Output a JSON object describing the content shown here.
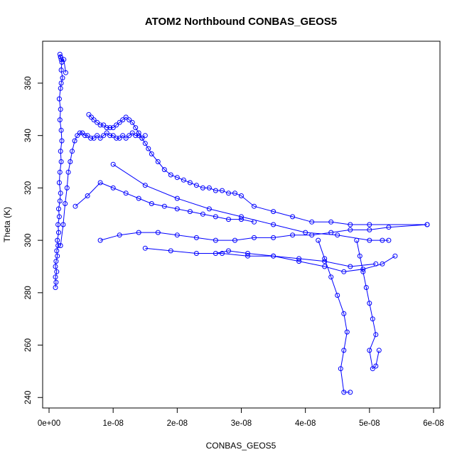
{
  "chart_data": {
    "type": "line",
    "title": "ATOM2 Northbound CONBAS_GEOS5",
    "xlabel": "CONBAS_GEOS5",
    "ylabel": "Theta (K)",
    "xlim": [
      -1e-09,
      6.1e-08
    ],
    "ylim": [
      236,
      376
    ],
    "x_ticks": [
      0,
      1e-08,
      2e-08,
      3e-08,
      4e-08,
      5e-08,
      6e-08
    ],
    "x_tick_labels": [
      "0e+00",
      "1e-08",
      "2e-08",
      "3e-08",
      "4e-08",
      "5e-08",
      "6e-08"
    ],
    "y_ticks": [
      240,
      260,
      280,
      300,
      320,
      340,
      360
    ],
    "y_tick_labels": [
      "240",
      "260",
      "280",
      "300",
      "320",
      "340",
      "360"
    ],
    "grid": false,
    "legend": "none",
    "marker": "open-circle",
    "series_color": "#0000ff",
    "series": [
      {
        "x": [
          1e-09,
          1.1e-09,
          1e-09,
          1.2e-09,
          1e-09,
          1.1e-09,
          1.3e-09,
          1.2e-09,
          1.4e-09,
          1.3e-09,
          1.5e-09,
          1.4e-09,
          1.6e-09,
          1.5e-09,
          1.7e-09,
          1.8e-09,
          1.6e-09,
          1.7e-09,
          1.9e-09,
          1.8e-09,
          2e-09,
          1.9e-09,
          1.7e-09,
          1.8e-09,
          1.6e-09,
          1.8e-09,
          1.9e-09,
          2.1e-09,
          1.9e-09,
          2e-09,
          1.8e-09,
          1.7e-09,
          1.8e-09,
          1.9e-09,
          2.3e-09,
          2.6e-09
        ],
        "y": [
          282,
          284,
          286,
          288,
          290,
          292,
          294,
          296,
          298,
          300,
          303,
          306,
          309,
          312,
          315,
          318,
          322,
          326,
          330,
          334,
          338,
          342,
          346,
          350,
          354,
          358,
          360,
          362,
          365,
          368,
          370,
          371,
          370,
          369,
          369,
          364
        ]
      },
      {
        "x": [
          1.8e-09,
          2.2e-09,
          2.5e-09,
          2.8e-09,
          3e-09,
          3.3e-09,
          3.6e-09,
          4e-09,
          4.4e-09,
          4.8e-09,
          5.2e-09,
          5.6e-09,
          6e-09,
          6.5e-09,
          7e-09,
          7.5e-09,
          8e-09,
          8.5e-09,
          9e-09,
          9.5e-09,
          1e-08,
          1.05e-08,
          1.1e-08,
          1.15e-08,
          1.2e-08,
          1.25e-08,
          1.3e-08,
          1.35e-08,
          1.4e-08,
          1.45e-08,
          1.5e-08
        ],
        "y": [
          298,
          306,
          314,
          320,
          326,
          330,
          334,
          338,
          340,
          341,
          341,
          340,
          340,
          339,
          339,
          340,
          339,
          340,
          341,
          340,
          340,
          339,
          339,
          340,
          339,
          340,
          341,
          340,
          340,
          339,
          340
        ]
      },
      {
        "x": [
          6.2e-09,
          6.6e-09,
          7e-09,
          7.5e-09,
          8e-09,
          8.5e-09,
          9e-09,
          9.5e-09,
          1e-08,
          1.05e-08,
          1.1e-08,
          1.15e-08,
          1.2e-08,
          1.25e-08,
          1.3e-08,
          1.35e-08,
          1.4e-08,
          1.45e-08,
          1.5e-08,
          1.55e-08,
          1.6e-08,
          1.7e-08,
          1.8e-08,
          1.9e-08,
          2e-08,
          2.1e-08,
          2.2e-08,
          2.3e-08,
          2.4e-08,
          2.5e-08,
          2.6e-08,
          2.7e-08,
          2.8e-08,
          2.9e-08,
          3e-08,
          3.2e-08,
          3.5e-08,
          3.8e-08,
          4.1e-08,
          4.4e-08,
          4.7e-08,
          5e-08,
          5.9e-08
        ],
        "y": [
          348,
          347,
          346,
          345,
          344,
          344,
          343,
          343,
          343,
          344,
          345,
          346,
          347,
          346,
          345,
          343,
          341,
          339,
          337,
          335,
          333,
          330,
          327,
          325,
          324,
          323,
          322,
          321,
          320,
          320,
          319,
          319,
          318,
          318,
          317,
          313,
          311,
          309,
          307,
          307,
          306,
          306,
          306
        ]
      },
      {
        "x": [
          5.9e-08,
          5.3e-08,
          5e-08,
          4.7e-08,
          4.4e-08,
          4.1e-08,
          3.8e-08,
          3.5e-08,
          3.2e-08,
          2.9e-08,
          2.6e-08,
          2.3e-08,
          2e-08,
          1.7e-08,
          1.4e-08,
          1.1e-08,
          8e-09
        ],
        "y": [
          306,
          305,
          304,
          304,
          303,
          302,
          302,
          301,
          301,
          300,
          300,
          301,
          302,
          303,
          303,
          302,
          300
        ]
      },
      {
        "x": [
          1e-08,
          1.5e-08,
          2e-08,
          2.5e-08,
          3e-08,
          3.5e-08,
          4e-08,
          4.5e-08,
          5e-08,
          5.2e-08,
          5.3e-08
        ],
        "y": [
          329,
          321,
          316,
          312,
          309,
          306,
          303,
          302,
          300,
          300,
          300
        ]
      },
      {
        "x": [
          4.2e-08,
          4.3e-08,
          4.4e-08,
          4.5e-08,
          4.6e-08,
          4.65e-08,
          4.6e-08,
          4.55e-08,
          4.6e-08,
          4.7e-08
        ],
        "y": [
          300,
          293,
          286,
          279,
          272,
          265,
          258,
          251,
          242,
          242
        ]
      },
      {
        "x": [
          4.8e-08,
          4.85e-08,
          4.9e-08,
          4.95e-08,
          5e-08,
          5.05e-08,
          5.1e-08,
          5e-08,
          5.05e-08,
          5.1e-08,
          5.15e-08
        ],
        "y": [
          300,
          294,
          288,
          282,
          276,
          270,
          264,
          258,
          251,
          252,
          258
        ]
      },
      {
        "x": [
          2.6e-08,
          2.8e-08,
          3.1e-08,
          3.5e-08,
          3.9e-08,
          4.3e-08,
          4.6e-08,
          4.9e-08,
          5.2e-08,
          5.4e-08
        ],
        "y": [
          295,
          296,
          295,
          294,
          292,
          290,
          288,
          289,
          291,
          294
        ]
      },
      {
        "x": [
          1.5e-08,
          1.9e-08,
          2.3e-08,
          2.7e-08,
          3.1e-08,
          3.5e-08,
          3.9e-08,
          4.3e-08,
          4.7e-08,
          5.1e-08
        ],
        "y": [
          297,
          296,
          295,
          295,
          294,
          294,
          293,
          292,
          290,
          291
        ]
      },
      {
        "x": [
          4.1e-09,
          6e-09,
          8e-09,
          1e-08,
          1.2e-08,
          1.4e-08,
          1.6e-08,
          1.8e-08,
          2e-08,
          2.2e-08,
          2.4e-08,
          2.6e-08,
          2.8e-08,
          3e-08,
          3.2e-08
        ],
        "y": [
          313,
          317,
          322,
          320,
          318,
          316,
          314,
          313,
          312,
          311,
          310,
          309,
          308,
          308,
          307
        ]
      }
    ]
  }
}
